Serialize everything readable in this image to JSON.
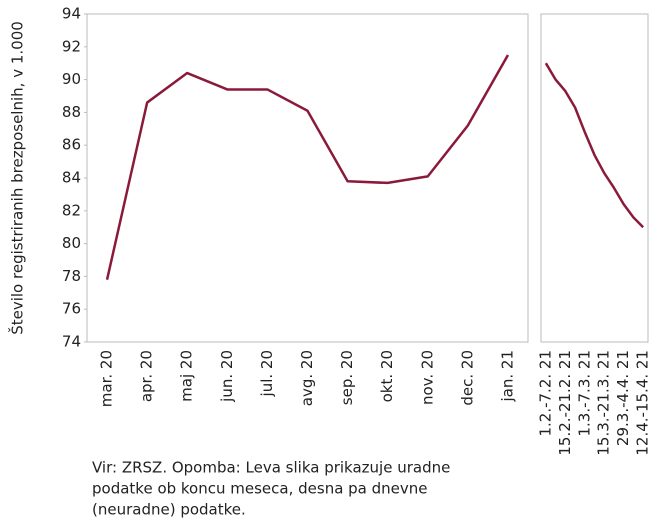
{
  "chart_data": [
    {
      "type": "line",
      "y_label": "Število registriranih brezposelnih, v 1.000",
      "categories": [
        "mar. 20",
        "apr. 20",
        "maj 20",
        "jun. 20",
        "jul. 20",
        "avg. 20",
        "sep. 20",
        "okt. 20",
        "nov. 20",
        "dec. 20",
        "jan. 21"
      ],
      "values": [
        77.8,
        88.6,
        90.4,
        89.4,
        89.4,
        88.1,
        83.8,
        83.7,
        84.1,
        87.2,
        91.5
      ],
      "color": "#8b1a3a",
      "ylim": [
        74,
        94
      ],
      "yticks": [
        74,
        76,
        78,
        80,
        82,
        84,
        86,
        88,
        90,
        92,
        94
      ]
    },
    {
      "type": "line",
      "categories": [
        "1.2.-7.2. 21",
        null,
        "15.2.-21.2. 21",
        null,
        "1.3.-7.3. 21",
        null,
        "15.3.-21.3. 21",
        null,
        "29.3.-4.4. 21",
        null,
        "12.4.-15.4. 21"
      ],
      "values": [
        91.0,
        90.0,
        89.3,
        88.3,
        86.8,
        85.4,
        84.3,
        83.4,
        82.4,
        81.6,
        81.0
      ],
      "color": "#8b1a3a",
      "ylim": [
        74,
        94
      ]
    }
  ],
  "source_note": [
    "Vir: ZRSZ. Opomba: Leva slika prikazuje uradne",
    "podatke ob koncu meseca, desna pa dnevne",
    "(neuradne) podatke."
  ]
}
